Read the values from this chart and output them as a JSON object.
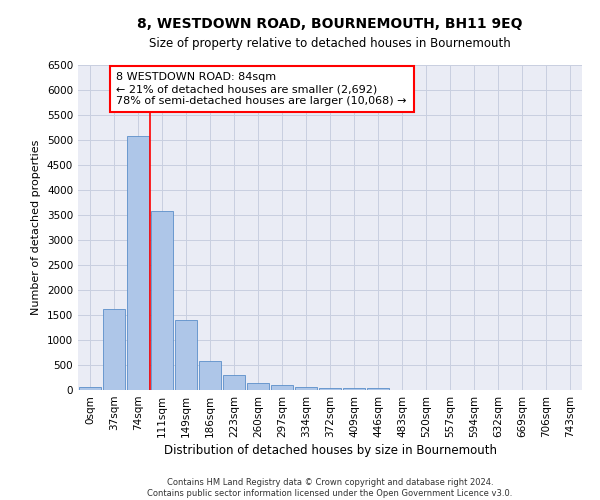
{
  "title": "8, WESTDOWN ROAD, BOURNEMOUTH, BH11 9EQ",
  "subtitle": "Size of property relative to detached houses in Bournemouth",
  "xlabel": "Distribution of detached houses by size in Bournemouth",
  "ylabel": "Number of detached properties",
  "footer1": "Contains HM Land Registry data © Crown copyright and database right 2024.",
  "footer2": "Contains public sector information licensed under the Open Government Licence v3.0.",
  "bar_labels": [
    "0sqm",
    "37sqm",
    "74sqm",
    "111sqm",
    "149sqm",
    "186sqm",
    "223sqm",
    "260sqm",
    "297sqm",
    "334sqm",
    "372sqm",
    "409sqm",
    "446sqm",
    "483sqm",
    "520sqm",
    "557sqm",
    "594sqm",
    "632sqm",
    "669sqm",
    "706sqm",
    "743sqm"
  ],
  "bar_values": [
    70,
    1625,
    5075,
    3575,
    1400,
    575,
    295,
    145,
    100,
    70,
    50,
    50,
    50,
    0,
    0,
    0,
    0,
    0,
    0,
    0,
    0
  ],
  "bar_color": "#aec6e8",
  "bar_edge_color": "#5b8fc9",
  "ylim": [
    0,
    6500
  ],
  "yticks": [
    0,
    500,
    1000,
    1500,
    2000,
    2500,
    3000,
    3500,
    4000,
    4500,
    5000,
    5500,
    6000,
    6500
  ],
  "property_label": "8 WESTDOWN ROAD: 84sqm",
  "annotation_line1": "← 21% of detached houses are smaller (2,692)",
  "annotation_line2": "78% of semi-detached houses are larger (10,068) →",
  "vline_x": 2.5,
  "grid_color": "#c8cfe0",
  "bg_color": "#eaecf5"
}
